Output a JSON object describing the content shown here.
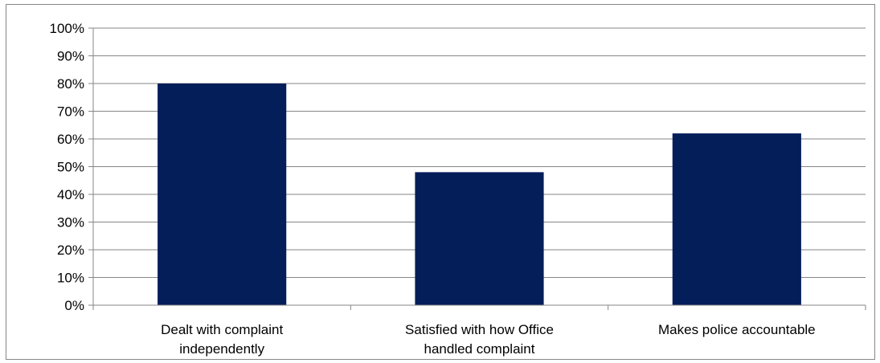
{
  "chart_data": {
    "type": "bar",
    "categories": [
      [
        "Dealt with complaint",
        "independently"
      ],
      [
        "Satisfied with how Office",
        "handled complaint"
      ],
      [
        "Makes police accountable"
      ]
    ],
    "values": [
      0.8,
      0.48,
      0.62
    ],
    "ylim": [
      0,
      1
    ],
    "yticks": [
      "0%",
      "10%",
      "20%",
      "30%",
      "40%",
      "50%",
      "60%",
      "70%",
      "80%",
      "90%",
      "100%"
    ],
    "grid": true,
    "legend": "none",
    "colors": {
      "bar": "#041E5A",
      "grid": "#868686",
      "axis": "#868686"
    }
  }
}
